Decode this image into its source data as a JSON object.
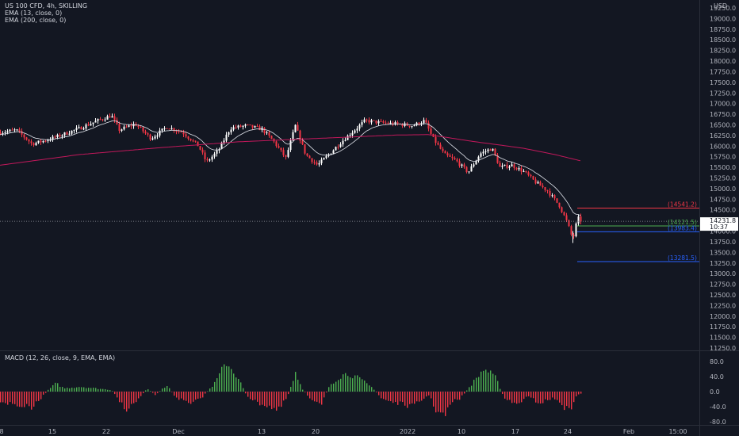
{
  "symbol_title": "US 100 CFD, 4h, SKILLING",
  "indicators": {
    "ema13": "EMA (13, close, 0)",
    "ema200": "EMA (200, close, 0)",
    "macd": "MACD (12, 26, close, 9, EMA, EMA)"
  },
  "currency": "USD",
  "price_axis_labels": [
    "19250.0",
    "19000.0",
    "18750.0",
    "18500.0",
    "18250.0",
    "18000.0",
    "17750.0",
    "17500.0",
    "17250.0",
    "17000.0",
    "16750.0",
    "16500.0",
    "16250.0",
    "16000.0",
    "15750.0",
    "15500.0",
    "15250.0",
    "15000.0",
    "14750.0",
    "14500.0",
    "14250.0",
    "14000.0",
    "13750.0",
    "13500.0",
    "13250.0",
    "13000.0",
    "12750.0",
    "12500.0",
    "12250.0",
    "12000.0",
    "11750.0",
    "11500.0",
    "11250.0"
  ],
  "current_price": "14231.8",
  "countdown": "10:37",
  "levels": [
    {
      "label": "(14541.2)",
      "value": 14541.2,
      "color": "#f23645"
    },
    {
      "label": "(14121.5)",
      "value": 14121.5,
      "color": "#4caf50"
    },
    {
      "label": "(13983.4)",
      "value": 13983.4,
      "color": "#2962ff"
    },
    {
      "label": "(13281.5)",
      "value": 13281.5,
      "color": "#2962ff"
    }
  ],
  "macd_axis_labels": [
    "80.0",
    "40.0",
    "0.0",
    "-40.0",
    "-80.0"
  ],
  "time_axis_labels": [
    "8",
    "15",
    "22",
    "Dec",
    "13",
    "20",
    "2022",
    "10",
    "17",
    "24",
    "Feb",
    "15:00"
  ],
  "colors": {
    "background": "#131722",
    "up": "#ffffff",
    "down": "#f23645",
    "ema13": "#e0e3eb",
    "ema200": "#c2185b",
    "hist_pos": "#26a69a",
    "hist_green": "#4caf50",
    "hist_neg": "#f23645"
  },
  "chart_data": {
    "type": "candlestick",
    "price_range": [
      11150,
      19350
    ],
    "price_points": [
      [
        0,
        16320
      ],
      [
        20,
        16380
      ],
      [
        40,
        16050
      ],
      [
        60,
        16150
      ],
      [
        80,
        16280
      ],
      [
        100,
        16420
      ],
      [
        120,
        16580
      ],
      [
        140,
        16720
      ],
      [
        150,
        16380
      ],
      [
        170,
        16520
      ],
      [
        190,
        16180
      ],
      [
        210,
        16450
      ],
      [
        230,
        16320
      ],
      [
        250,
        16000
      ],
      [
        260,
        15620
      ],
      [
        275,
        15900
      ],
      [
        290,
        16420
      ],
      [
        310,
        16480
      ],
      [
        330,
        16400
      ],
      [
        345,
        16100
      ],
      [
        360,
        15720
      ],
      [
        372,
        16480
      ],
      [
        385,
        15800
      ],
      [
        400,
        15550
      ],
      [
        415,
        15820
      ],
      [
        430,
        16100
      ],
      [
        445,
        16350
      ],
      [
        460,
        16600
      ],
      [
        480,
        16550
      ],
      [
        500,
        16520
      ],
      [
        520,
        16480
      ],
      [
        535,
        16600
      ],
      [
        545,
        16200
      ],
      [
        560,
        15800
      ],
      [
        575,
        15650
      ],
      [
        590,
        15380
      ],
      [
        605,
        15820
      ],
      [
        620,
        15950
      ],
      [
        630,
        15500
      ],
      [
        645,
        15550
      ],
      [
        660,
        15400
      ],
      [
        675,
        15150
      ],
      [
        690,
        14950
      ],
      [
        705,
        14600
      ],
      [
        715,
        14200
      ],
      [
        722,
        13800
      ],
      [
        728,
        14320
      ],
      [
        733,
        14230
      ]
    ],
    "ema200_points": [
      [
        0,
        15550
      ],
      [
        100,
        15800
      ],
      [
        200,
        15960
      ],
      [
        300,
        16100
      ],
      [
        400,
        16180
      ],
      [
        500,
        16260
      ],
      [
        540,
        16270
      ],
      [
        600,
        16100
      ],
      [
        660,
        15950
      ],
      [
        700,
        15800
      ],
      [
        733,
        15650
      ]
    ],
    "macd_range": [
      -90,
      90
    ],
    "macd_histogram_env": [
      [
        0,
        -30
      ],
      [
        20,
        -40
      ],
      [
        40,
        -50
      ],
      [
        60,
        5
      ],
      [
        70,
        25
      ],
      [
        80,
        10
      ],
      [
        100,
        15
      ],
      [
        120,
        10
      ],
      [
        140,
        5
      ],
      [
        150,
        -30
      ],
      [
        160,
        -55
      ],
      [
        175,
        -20
      ],
      [
        185,
        10
      ],
      [
        195,
        -10
      ],
      [
        210,
        20
      ],
      [
        220,
        -15
      ],
      [
        240,
        -40
      ],
      [
        255,
        -15
      ],
      [
        270,
        25
      ],
      [
        285,
        90
      ],
      [
        300,
        40
      ],
      [
        310,
        -10
      ],
      [
        320,
        -30
      ],
      [
        340,
        -45
      ],
      [
        350,
        -60
      ],
      [
        362,
        -15
      ],
      [
        372,
        60
      ],
      [
        380,
        10
      ],
      [
        390,
        -20
      ],
      [
        405,
        -35
      ],
      [
        415,
        20
      ],
      [
        430,
        50
      ],
      [
        440,
        55
      ],
      [
        455,
        35
      ],
      [
        470,
        10
      ],
      [
        480,
        -20
      ],
      [
        500,
        -35
      ],
      [
        520,
        -45
      ],
      [
        540,
        -10
      ],
      [
        550,
        -60
      ],
      [
        560,
        -75
      ],
      [
        570,
        -30
      ],
      [
        580,
        -20
      ],
      [
        590,
        10
      ],
      [
        610,
        70
      ],
      [
        625,
        40
      ],
      [
        635,
        -20
      ],
      [
        650,
        -40
      ],
      [
        665,
        -15
      ],
      [
        680,
        -35
      ],
      [
        695,
        -20
      ],
      [
        705,
        -30
      ],
      [
        712,
        -50
      ],
      [
        718,
        -60
      ],
      [
        725,
        -15
      ],
      [
        733,
        -5
      ]
    ]
  }
}
